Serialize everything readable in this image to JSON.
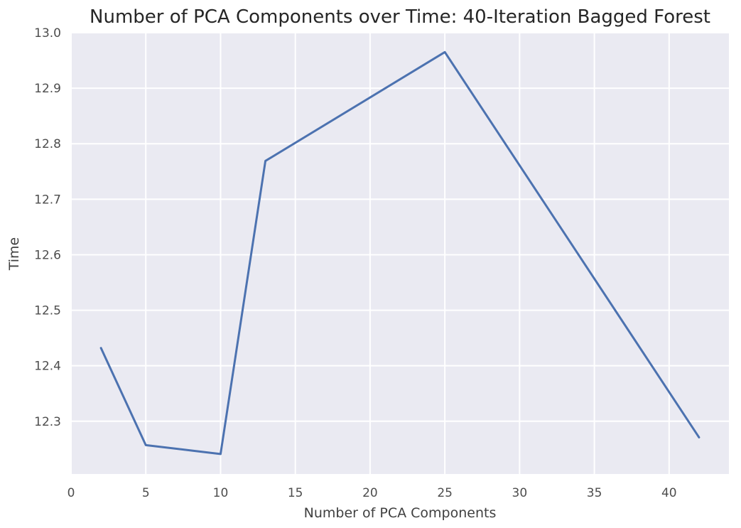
{
  "chart_data": {
    "type": "line",
    "title": "Number of PCA Components over Time: 40-Iteration Bagged Forest",
    "xlabel": "Number of PCA Components",
    "ylabel": "Time",
    "xlim": [
      0,
      44
    ],
    "ylim": [
      12.205,
      13.0
    ],
    "x_ticks": [
      0,
      5,
      10,
      15,
      20,
      25,
      30,
      35,
      40
    ],
    "y_ticks": [
      12.3,
      12.4,
      12.5,
      12.6,
      12.7,
      12.8,
      12.9,
      13.0
    ],
    "x_tick_labels": [
      "0",
      "5",
      "10",
      "15",
      "20",
      "25",
      "30",
      "35",
      "40"
    ],
    "y_tick_labels": [
      "12.3",
      "12.4",
      "12.5",
      "12.6",
      "12.7",
      "12.8",
      "12.9",
      "13.0"
    ],
    "grid": true,
    "series": [
      {
        "x": [
          2,
          5,
          10,
          13,
          25,
          42
        ],
        "y": [
          12.432,
          12.257,
          12.241,
          12.769,
          12.965,
          12.271
        ]
      }
    ],
    "colors": {
      "line": "#4c72b0",
      "plot_background": "#eaeaf2",
      "grid": "#ffffff"
    }
  }
}
